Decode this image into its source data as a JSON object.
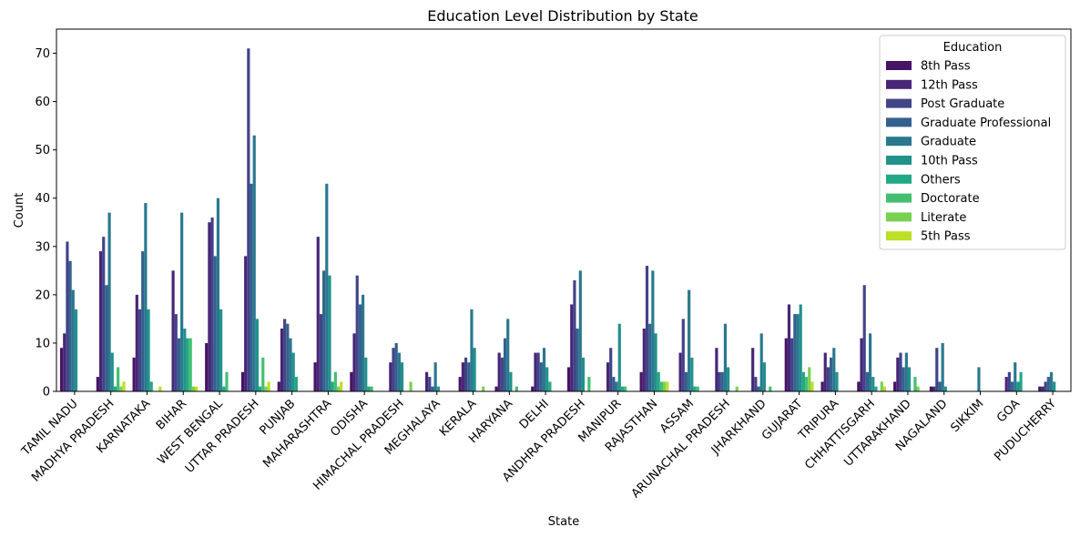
{
  "chart_data": {
    "type": "bar",
    "title": "Education Level Distribution by State",
    "xlabel": "State",
    "ylabel": "Count",
    "ylim": [
      0,
      75
    ],
    "yticks": [
      0,
      10,
      20,
      30,
      40,
      50,
      60,
      70
    ],
    "grid": false,
    "legend": {
      "title": "Education",
      "placement": "top-right"
    },
    "categories": [
      "TAMIL NADU",
      "MADHYA PRADESH",
      "KARNATAKA",
      "BIHAR",
      "WEST BENGAL",
      "UTTAR PRADESH",
      "PUNJAB",
      "MAHARASHTRA",
      "ODISHA",
      "HIMACHAL PRADESH",
      "MEGHALAYA",
      "KERALA",
      "HARYANA",
      "DELHI",
      "ANDHRA PRADESH",
      "MANIPUR",
      "RAJASTHAN",
      "ASSAM",
      "ARUNACHAL PRADESH",
      "JHARKHAND",
      "GUJARAT",
      "TRIPURA",
      "CHHATTISGARH",
      "UTTARAKHAND",
      "NAGALAND",
      "SIKKIM",
      "GOA",
      "PUDUCHERRY"
    ],
    "series": [
      {
        "name": "8th Pass",
        "color": "#471365",
        "values": [
          9,
          3,
          7,
          0,
          10,
          4,
          2,
          6,
          4,
          0,
          0,
          3,
          1,
          1,
          5,
          0,
          4,
          0,
          0,
          0,
          11,
          2,
          2,
          2,
          1,
          0,
          0,
          1
        ]
      },
      {
        "name": "12th Pass",
        "color": "#482576",
        "values": [
          12,
          29,
          20,
          25,
          35,
          28,
          13,
          32,
          12,
          6,
          4,
          6,
          8,
          8,
          18,
          6,
          13,
          8,
          9,
          9,
          18,
          8,
          11,
          7,
          1,
          0,
          3,
          1
        ]
      },
      {
        "name": "Post Graduate",
        "color": "#414487",
        "values": [
          31,
          32,
          17,
          16,
          36,
          71,
          15,
          16,
          24,
          9,
          3,
          7,
          7,
          8,
          23,
          9,
          26,
          15,
          4,
          3,
          11,
          5,
          22,
          8,
          9,
          0,
          4,
          2
        ]
      },
      {
        "name": "Graduate Professional",
        "color": "#35608d",
        "values": [
          27,
          22,
          29,
          11,
          28,
          43,
          14,
          25,
          18,
          10,
          1,
          6,
          11,
          6,
          13,
          3,
          14,
          4,
          4,
          1,
          16,
          7,
          4,
          5,
          2,
          0,
          2,
          3
        ]
      },
      {
        "name": "Graduate",
        "color": "#2a788e",
        "values": [
          21,
          37,
          39,
          37,
          40,
          53,
          11,
          43,
          20,
          8,
          6,
          17,
          15,
          9,
          25,
          2,
          25,
          21,
          14,
          12,
          16,
          9,
          12,
          8,
          10,
          5,
          6,
          4
        ]
      },
      {
        "name": "10th Pass",
        "color": "#21918c",
        "values": [
          17,
          8,
          17,
          13,
          17,
          15,
          8,
          24,
          7,
          6,
          1,
          9,
          4,
          5,
          7,
          14,
          12,
          7,
          5,
          6,
          18,
          4,
          3,
          5,
          1,
          0,
          2,
          2
        ]
      },
      {
        "name": "Others",
        "color": "#22a884",
        "values": [
          0,
          1,
          2,
          11,
          1,
          1,
          3,
          2,
          1,
          0,
          0,
          0,
          0,
          2,
          0,
          1,
          4,
          1,
          0,
          0,
          4,
          0,
          1,
          0,
          0,
          0,
          4,
          0
        ]
      },
      {
        "name": "Doctorate",
        "color": "#44bf70",
        "values": [
          0,
          5,
          0,
          11,
          4,
          7,
          0,
          4,
          1,
          0,
          0,
          0,
          1,
          0,
          3,
          1,
          2,
          1,
          0,
          1,
          3,
          0,
          0,
          3,
          0,
          0,
          0,
          0
        ]
      },
      {
        "name": "Literate",
        "color": "#7ad151",
        "values": [
          0,
          1,
          0,
          1,
          0,
          1,
          0,
          1,
          0,
          2,
          0,
          1,
          0,
          0,
          0,
          0,
          2,
          0,
          1,
          0,
          5,
          0,
          2,
          1,
          0,
          0,
          0,
          0
        ]
      },
      {
        "name": "5th Pass",
        "color": "#bddf26",
        "values": [
          0,
          2,
          1,
          1,
          0,
          2,
          0,
          2,
          0,
          0,
          0,
          0,
          0,
          0,
          0,
          0,
          2,
          0,
          0,
          0,
          2,
          0,
          1,
          0,
          0,
          0,
          0,
          0
        ]
      }
    ]
  }
}
